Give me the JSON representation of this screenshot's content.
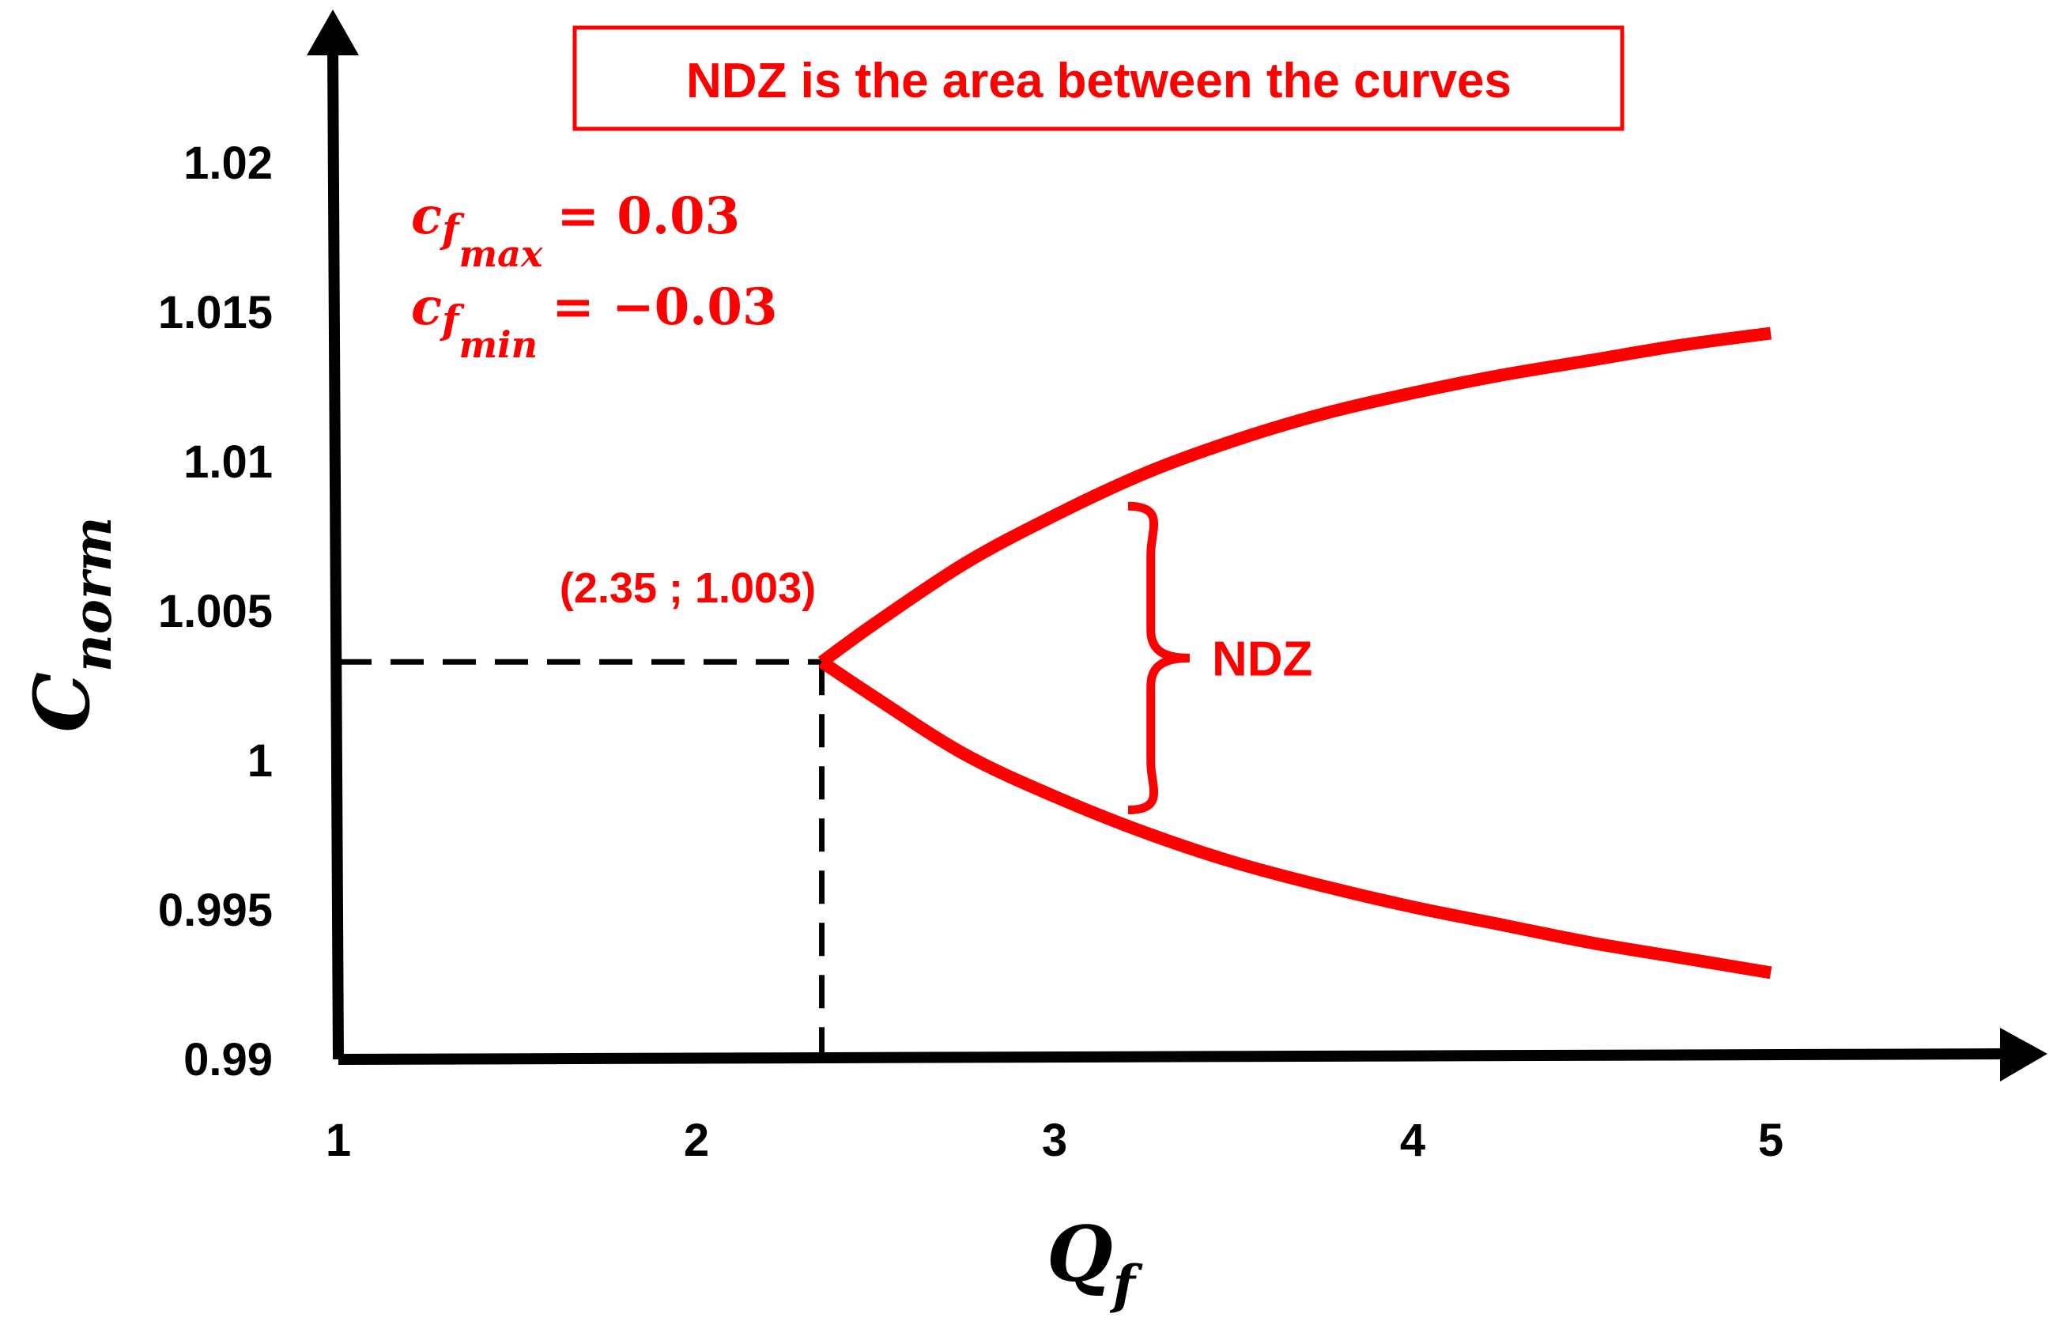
{
  "chart_data": {
    "type": "line",
    "xlim": [
      1,
      5.5
    ],
    "ylim": [
      0.99,
      1.0245
    ],
    "x_ticks": [
      "1",
      "2",
      "3",
      "4",
      "5"
    ],
    "y_ticks": [
      "0.99",
      "0.995",
      "1",
      "1.005",
      "1.01",
      "1.015",
      "1.02"
    ],
    "xlabel": {
      "main": "Q",
      "sub": "f"
    },
    "ylabel": {
      "main": "C",
      "sub": "norm"
    },
    "series": [
      {
        "x": [
          2.35,
          2.5,
          2.75,
          3.0,
          3.25,
          3.5,
          3.75,
          4.0,
          4.25,
          4.5,
          4.75,
          5.0
        ],
        "y": [
          1.0033,
          1.0046,
          1.0066,
          1.0082,
          1.0096,
          1.0107,
          1.0116,
          1.0123,
          1.0129,
          1.0134,
          1.0139,
          1.0143
        ]
      },
      {
        "x": [
          2.35,
          2.5,
          2.75,
          3.0,
          3.25,
          3.5,
          3.75,
          4.0,
          4.25,
          4.5,
          4.75,
          5.0
        ],
        "y": [
          1.0033,
          1.0021,
          1.0002,
          0.9988,
          0.9976,
          0.9966,
          0.9958,
          0.9951,
          0.9945,
          0.9939,
          0.9934,
          0.9929
        ]
      }
    ],
    "point": {
      "x": 2.35,
      "y": 1.0033,
      "label": "(2.35 ; 1.003)"
    },
    "ndz": {
      "x": 3.15,
      "label": "NDZ"
    },
    "grid": false,
    "colors": {
      "curve": "#ff0000",
      "axis": "#000000",
      "guide": "#000000"
    }
  },
  "annotations": {
    "banner": "NDZ is the area between the curves",
    "cf_max": {
      "var": "c",
      "sub": "f",
      "subsub": "max",
      "eq": "= 0.03"
    },
    "cf_min": {
      "var": "c",
      "sub": "f",
      "subsub": "min",
      "eq": "= −0.03"
    }
  }
}
